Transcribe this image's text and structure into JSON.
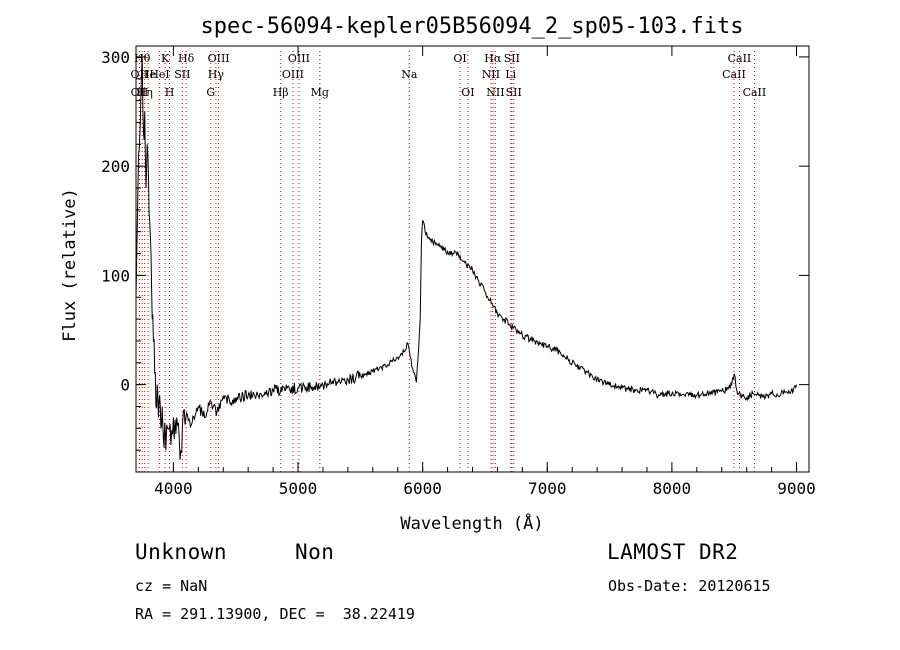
{
  "chart_data": {
    "type": "line",
    "title": "spec-56094-kepler05B56094_2_sp05-103.fits",
    "xlabel": "Wavelength (Å)",
    "ylabel": "Flux (relative)",
    "xlim": [
      3700,
      9100
    ],
    "ylim": [
      -80,
      310
    ],
    "xticks": [
      4000,
      5000,
      6000,
      7000,
      8000,
      9000
    ],
    "yticks": [
      0,
      100,
      200,
      300
    ],
    "grid": false,
    "line_color": "#000000",
    "marker_color": "#cc0000",
    "spectrum": {
      "x": [
        3700,
        3720,
        3740,
        3750,
        3760,
        3770,
        3780,
        3790,
        3800,
        3810,
        3820,
        3830,
        3840,
        3850,
        3860,
        3870,
        3880,
        3890,
        3900,
        3910,
        3920,
        3930,
        3940,
        3960,
        3980,
        4000,
        4020,
        4040,
        4060,
        4080,
        4100,
        4150,
        4200,
        4250,
        4300,
        4350,
        4400,
        4450,
        4500,
        4600,
        4700,
        4800,
        4900,
        5000,
        5100,
        5200,
        5300,
        5400,
        5500,
        5600,
        5700,
        5800,
        5850,
        5880,
        5900,
        5920,
        5950,
        5980,
        5990,
        6000,
        6010,
        6020,
        6050,
        6100,
        6150,
        6200,
        6250,
        6300,
        6350,
        6400,
        6450,
        6500,
        6550,
        6600,
        6650,
        6700,
        6750,
        6800,
        6900,
        7000,
        7100,
        7200,
        7300,
        7400,
        7500,
        7600,
        7700,
        7800,
        7900,
        8000,
        8100,
        8200,
        8300,
        8400,
        8450,
        8480,
        8500,
        8520,
        8550,
        8600,
        8650,
        8700,
        8750,
        8800,
        8850,
        8900,
        8950,
        9000
      ],
      "y": [
        80,
        210,
        270,
        300,
        230,
        250,
        180,
        220,
        190,
        150,
        120,
        60,
        40,
        10,
        -20,
        0,
        -30,
        -10,
        -40,
        -20,
        -50,
        -35,
        -60,
        -40,
        -55,
        -30,
        -45,
        -35,
        -60,
        -25,
        -30,
        -35,
        -20,
        -30,
        -15,
        -25,
        -10,
        -15,
        -12,
        -10,
        -8,
        -5,
        -5,
        -3,
        -2,
        0,
        3,
        5,
        8,
        12,
        18,
        25,
        30,
        38,
        25,
        15,
        2,
        60,
        130,
        150,
        148,
        140,
        135,
        130,
        125,
        122,
        120,
        118,
        110,
        105,
        95,
        85,
        75,
        65,
        60,
        55,
        50,
        45,
        40,
        35,
        30,
        20,
        12,
        5,
        0,
        -3,
        -5,
        -5,
        -10,
        -8,
        -10,
        -10,
        -8,
        -6,
        -4,
        0,
        10,
        -5,
        -10,
        -12,
        -8,
        -10,
        -12,
        -8,
        -10,
        -5,
        -8,
        0
      ]
    },
    "lines": [
      {
        "wl": 3727,
        "label": "OII",
        "row": 2
      },
      {
        "wl": 3728,
        "label": "OII",
        "row": 3
      },
      {
        "wl": 3750,
        "label": "Hθ",
        "row": 1
      },
      {
        "wl": 3770,
        "label": "Hη",
        "row": 3
      },
      {
        "wl": 3797,
        "label": "He",
        "row": 2
      },
      {
        "wl": 3889,
        "label": "HeI",
        "row": 2
      },
      {
        "wl": 3934,
        "label": "K",
        "row": 1
      },
      {
        "wl": 3969,
        "label": "H",
        "row": 3
      },
      {
        "wl": 4072,
        "label": "SII",
        "row": 2
      },
      {
        "wl": 4102,
        "label": "Hδ",
        "row": 1
      },
      {
        "wl": 4300,
        "label": "G",
        "row": 3
      },
      {
        "wl": 4341,
        "label": "Hγ",
        "row": 2
      },
      {
        "wl": 4363,
        "label": "OIII",
        "row": 1
      },
      {
        "wl": 4861,
        "label": "Hβ",
        "row": 3
      },
      {
        "wl": 4959,
        "label": "OIII",
        "row": 2
      },
      {
        "wl": 5007,
        "label": "OIII",
        "row": 1
      },
      {
        "wl": 5175,
        "label": "Mg",
        "row": 3
      },
      {
        "wl": 5893,
        "label": "Na",
        "row": 2
      },
      {
        "wl": 6300,
        "label": "OI",
        "row": 1
      },
      {
        "wl": 6363,
        "label": "OI",
        "row": 3
      },
      {
        "wl": 6548,
        "label": "NII",
        "row": 2
      },
      {
        "wl": 6563,
        "label": "Hα",
        "row": 1
      },
      {
        "wl": 6584,
        "label": "NII",
        "row": 3
      },
      {
        "wl": 6707,
        "label": "Li",
        "row": 2
      },
      {
        "wl": 6716,
        "label": "SII",
        "row": 1
      },
      {
        "wl": 6731,
        "label": "SII",
        "row": 3
      },
      {
        "wl": 8498,
        "label": "CaII",
        "row": 2
      },
      {
        "wl": 8542,
        "label": "CaII",
        "row": 1
      },
      {
        "wl": 8662,
        "label": "CaII",
        "row": 3
      }
    ]
  },
  "footer": {
    "class_label": "Unknown",
    "subclass_label": "Non",
    "survey": "LAMOST DR2",
    "redshift": "cz = NaN",
    "obs_date": "Obs-Date: 20120615",
    "coords": "RA = 291.13900, DEC =  38.22419"
  }
}
